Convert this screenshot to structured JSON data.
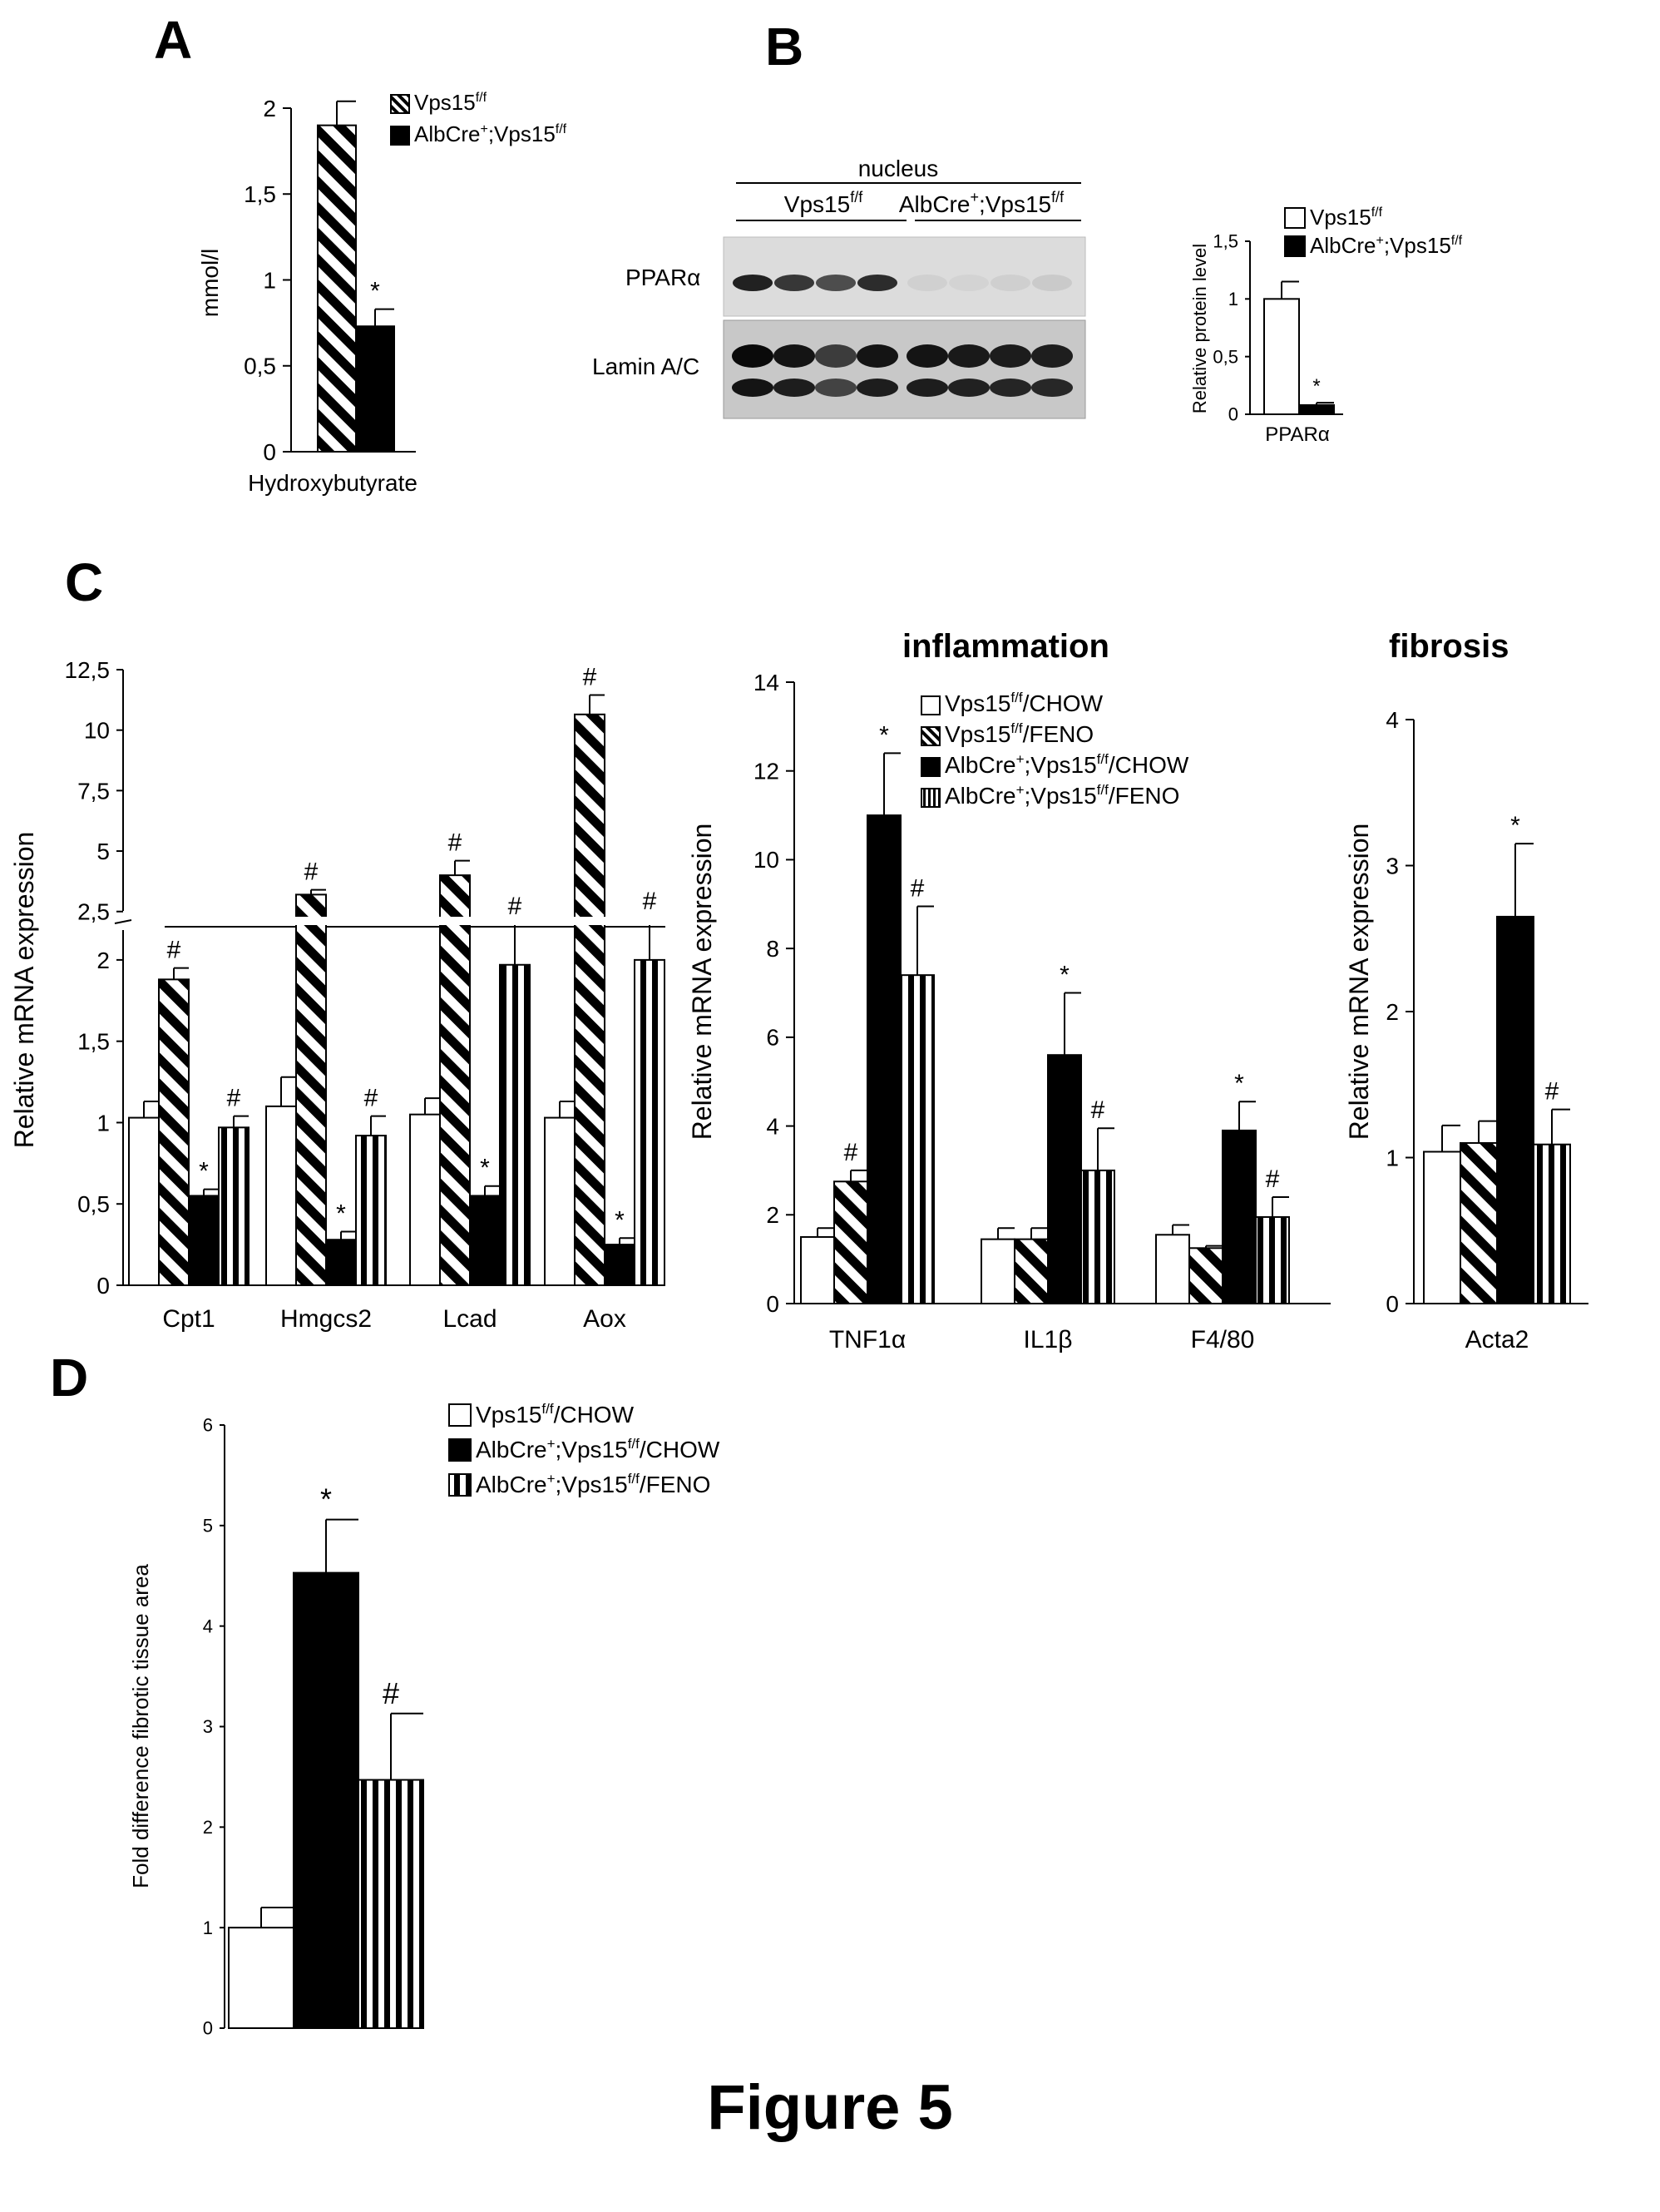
{
  "panel_letters": {
    "A": "A",
    "B": "B",
    "C": "C",
    "D": "D"
  },
  "figure_title": "Figure 5",
  "blot": {
    "top_label": "nucleus",
    "group1": "Vps15f/f",
    "group2": "AlbCre+;Vps15f/f",
    "row1_label": "PPARα",
    "row2_label": "Lamin A/C",
    "lane_intensity_row1": [
      0.85,
      0.75,
      0.65,
      0.8,
      0.05,
      0.04,
      0.06,
      0.08
    ],
    "lane_intensity_row2": [
      0.95,
      0.9,
      0.7,
      0.9,
      0.9,
      0.88,
      0.86,
      0.85
    ]
  },
  "section_titles": {
    "inflammation": "inflammation",
    "fibrosis": "fibrosis"
  },
  "colors": {
    "bar_outline": "#000000",
    "filled": "#000000",
    "open": "#ffffff"
  },
  "chart_data": [
    {
      "id": "A",
      "type": "bar",
      "categories": [
        "Hydroxybutyrate"
      ],
      "series": [
        {
          "name": "Vps15f/f",
          "pattern": "diagonal",
          "values": [
            1.9
          ],
          "errors": [
            0.14
          ],
          "marks": [
            ""
          ]
        },
        {
          "name": "AlbCre+;Vps15f/f",
          "pattern": "solid",
          "values": [
            0.73
          ],
          "errors": [
            0.1
          ],
          "marks": [
            "*"
          ]
        }
      ],
      "ylabel": "mmol/l",
      "ylim": [
        0,
        2
      ],
      "yticks": [
        "0",
        "0,5",
        "1",
        "1,5",
        "2"
      ],
      "legend": "top-right"
    },
    {
      "id": "B",
      "type": "bar",
      "categories": [
        "PPARα"
      ],
      "series": [
        {
          "name": "Vps15f/f",
          "pattern": "open",
          "values": [
            1.0
          ],
          "errors": [
            0.15
          ],
          "marks": [
            ""
          ]
        },
        {
          "name": "AlbCre+;Vps15f/f",
          "pattern": "solid",
          "values": [
            0.08
          ],
          "errors": [
            0.02
          ],
          "marks": [
            "*"
          ]
        }
      ],
      "ylabel": "Relative protein level",
      "ylim": [
        0,
        1.5
      ],
      "yticks": [
        "0",
        "0,5",
        "1",
        "1,5"
      ],
      "legend": "top-right"
    },
    {
      "id": "C-fatty-acid-oxidation",
      "type": "bar",
      "categories": [
        "Cpt1",
        "Hmgcs2",
        "Lcad",
        "Aox"
      ],
      "series": [
        {
          "name": "Vps15f/f/CHOW",
          "pattern": "open",
          "values": [
            1.03,
            1.1,
            1.05,
            1.03
          ],
          "errors": [
            0.1,
            0.18,
            0.1,
            0.1
          ],
          "marks": [
            "",
            "",
            "",
            ""
          ]
        },
        {
          "name": "Vps15f/f/FENO",
          "pattern": "diagonal",
          "values": [
            1.88,
            3.2,
            4.0,
            10.65
          ],
          "errors": [
            0.07,
            0.2,
            0.6,
            0.8
          ],
          "marks": [
            "#",
            "#",
            "#",
            "#"
          ]
        },
        {
          "name": "AlbCre+;Vps15f/f/CHOW",
          "pattern": "solid",
          "values": [
            0.55,
            0.28,
            0.55,
            0.25
          ],
          "errors": [
            0.04,
            0.05,
            0.06,
            0.04
          ],
          "marks": [
            "*",
            "*",
            "*",
            "*"
          ]
        },
        {
          "name": "AlbCre+;Vps15f/f/FENO",
          "pattern": "vertical",
          "values": [
            0.97,
            0.92,
            1.97,
            2.0
          ],
          "errors": [
            0.07,
            0.12,
            0.25,
            0.25
          ],
          "marks": [
            "#",
            "#",
            "#",
            "#"
          ]
        }
      ],
      "ylabel": "Relative  mRNA  expression",
      "axis_break": [
        2.25,
        2.5
      ],
      "lower_yticks": [
        "0",
        "0,5",
        "1",
        "1,5",
        "2"
      ],
      "upper_yticks": [
        "2,5",
        "5",
        "7,5",
        "10",
        "12,5"
      ],
      "ylim": [
        0,
        12.5
      ]
    },
    {
      "id": "C-inflammation",
      "type": "bar",
      "categories": [
        "TNF1α",
        "IL1β",
        "F4/80"
      ],
      "series": [
        {
          "name": "Vps15f/f/CHOW",
          "pattern": "open",
          "values": [
            1.5,
            1.45,
            1.55
          ],
          "errors": [
            0.2,
            0.25,
            0.22
          ],
          "marks": [
            "",
            "",
            ""
          ]
        },
        {
          "name": "Vps15f/f/FENO",
          "pattern": "diagonal",
          "values": [
            2.75,
            1.45,
            1.25
          ],
          "errors": [
            0.25,
            0.25,
            0.05
          ],
          "marks": [
            "#",
            "",
            ""
          ]
        },
        {
          "name": "AlbCre+;Vps15f/f/CHOW",
          "pattern": "solid",
          "values": [
            11.0,
            5.6,
            3.9
          ],
          "errors": [
            1.4,
            1.4,
            0.65
          ],
          "marks": [
            "*",
            "*",
            "*"
          ]
        },
        {
          "name": "AlbCre+;Vps15f/f/FENO",
          "pattern": "vertical",
          "values": [
            7.4,
            3.0,
            1.95
          ],
          "errors": [
            1.55,
            0.95,
            0.45
          ],
          "marks": [
            "#",
            "#",
            "#"
          ]
        }
      ],
      "ylabel": "Relative  mRNA  expression",
      "ylim": [
        0,
        14
      ],
      "yticks": [
        "0",
        "2",
        "4",
        "6",
        "8",
        "10",
        "12",
        "14"
      ],
      "legend": "top-right"
    },
    {
      "id": "C-fibrosis",
      "type": "bar",
      "categories": [
        "Acta2"
      ],
      "series": [
        {
          "name": "Vps15f/f/CHOW",
          "pattern": "open",
          "values": [
            1.04
          ],
          "errors": [
            0.18
          ],
          "marks": [
            ""
          ]
        },
        {
          "name": "Vps15f/f/FENO",
          "pattern": "diagonal",
          "values": [
            1.1
          ],
          "errors": [
            0.15
          ],
          "marks": [
            ""
          ]
        },
        {
          "name": "AlbCre+;Vps15f/f/CHOW",
          "pattern": "solid",
          "values": [
            2.65
          ],
          "errors": [
            0.5
          ],
          "marks": [
            "*"
          ]
        },
        {
          "name": "AlbCre+;Vps15f/f/FENO",
          "pattern": "vertical",
          "values": [
            1.09
          ],
          "errors": [
            0.24
          ],
          "marks": [
            "#"
          ]
        }
      ],
      "ylabel": "Relative  mRNA  expression",
      "ylim": [
        0,
        4
      ],
      "yticks": [
        "0",
        "1",
        "2",
        "3",
        "4"
      ]
    },
    {
      "id": "D",
      "type": "bar",
      "categories": [
        ""
      ],
      "series": [
        {
          "name": "Vps15f/f/CHOW",
          "pattern": "open",
          "values": [
            1.0
          ],
          "errors": [
            0.2
          ],
          "marks": [
            ""
          ]
        },
        {
          "name": "AlbCre+;Vps15f/f/CHOW",
          "pattern": "solid",
          "values": [
            4.53
          ],
          "errors": [
            0.53
          ],
          "marks": [
            "*"
          ]
        },
        {
          "name": "AlbCre+;Vps15f/f/FENO",
          "pattern": "vertical",
          "values": [
            2.47
          ],
          "errors": [
            0.66
          ],
          "marks": [
            "#"
          ]
        }
      ],
      "ylabel": "Fold difference fibrotic tissue area",
      "ylim": [
        0,
        6
      ],
      "yticks": [
        "0",
        "1",
        "2",
        "3",
        "4",
        "5",
        "6"
      ],
      "legend": "top-right"
    }
  ]
}
